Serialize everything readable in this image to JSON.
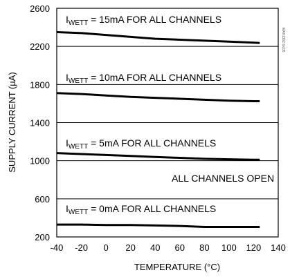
{
  "chart_data": {
    "type": "line",
    "title": "",
    "xlabel": "TEMPERATURE (°C)",
    "ylabel": "SUPPLY CURRENT (µA)",
    "xlim": [
      -40,
      140
    ],
    "ylim": [
      200,
      2600
    ],
    "x_ticks": [
      -40,
      -20,
      0,
      20,
      40,
      60,
      80,
      100,
      120,
      140
    ],
    "y_ticks": [
      200,
      600,
      1000,
      1400,
      1800,
      2200,
      2600
    ],
    "grid": "horizontal",
    "series": [
      {
        "label_prefix": "I",
        "label_subscript": "WETT",
        "label_suffix": " = 15mA FOR ALL CHANNELS",
        "x": [
          -40,
          -20,
          0,
          20,
          40,
          60,
          80,
          100,
          120,
          125
        ],
        "y": [
          2350,
          2340,
          2320,
          2300,
          2280,
          2270,
          2260,
          2250,
          2240,
          2235
        ]
      },
      {
        "label_prefix": "I",
        "label_subscript": "WETT",
        "label_suffix": " = 10mA FOR ALL CHANNELS",
        "x": [
          -40,
          -20,
          0,
          20,
          40,
          60,
          80,
          100,
          120,
          125
        ],
        "y": [
          1710,
          1700,
          1685,
          1670,
          1660,
          1650,
          1640,
          1630,
          1625,
          1625
        ]
      },
      {
        "label_prefix": "I",
        "label_subscript": "WETT",
        "label_suffix": " = 5mA FOR ALL CHANNELS",
        "x": [
          -40,
          -20,
          0,
          20,
          40,
          60,
          80,
          100,
          120,
          125
        ],
        "y": [
          1080,
          1070,
          1060,
          1050,
          1040,
          1030,
          1020,
          1015,
          1010,
          1010
        ]
      },
      {
        "label_prefix": "I",
        "label_subscript": "WETT",
        "label_suffix": " = 0mA FOR ALL CHANNELS",
        "x": [
          -40,
          -20,
          0,
          20,
          40,
          60,
          80,
          100,
          120,
          125
        ],
        "y": [
          330,
          330,
          325,
          325,
          320,
          315,
          305,
          305,
          305,
          305
        ]
      }
    ],
    "annotations": [
      "ALL CHANNELS OPEN"
    ],
    "side_tag": "MAX1302 toc05"
  }
}
